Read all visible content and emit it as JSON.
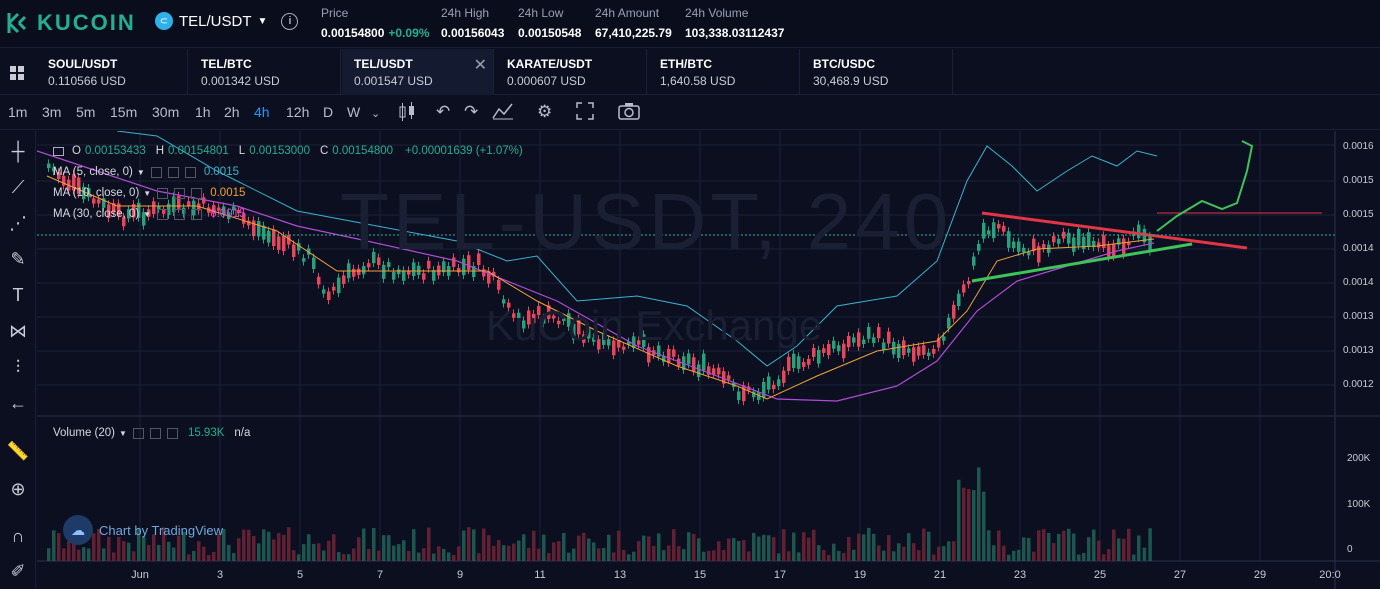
{
  "header": {
    "logo_text": "KUCOIN",
    "pair": "TEL/USDT",
    "price_label": "Price",
    "price_value": "0.00154800",
    "price_change": "+0.09%",
    "high_label": "24h High",
    "high_value": "0.00156043",
    "low_label": "24h Low",
    "low_value": "0.00150548",
    "amount_label": "24h Amount",
    "amount_value": "67,410,225.79",
    "volume_label": "24h Volume",
    "volume_value": "103,338.03112437"
  },
  "tabs": [
    {
      "name": "SOUL/USDT",
      "price": "0.110566 USD"
    },
    {
      "name": "TEL/BTC",
      "price": "0.001342 USD"
    },
    {
      "name": "TEL/USDT",
      "price": "0.001547 USD"
    },
    {
      "name": "KARATE/USDT",
      "price": "0.000607 USD"
    },
    {
      "name": "ETH/BTC",
      "price": "1,640.58 USD"
    },
    {
      "name": "BTC/USDC",
      "price": "30,468.9 USD"
    }
  ],
  "toolbar": {
    "timeframes": [
      "1m",
      "3m",
      "5m",
      "15m",
      "30m",
      "1h",
      "2h",
      "4h",
      "12h",
      "D",
      "W"
    ],
    "active": "4h"
  },
  "legend": {
    "ohlc": "O0.00153433 H0.00154801 L0.00153000 C0.00154800 +0.00001639 (+1.07%)",
    "o": "O",
    "o_val": "0.00153433",
    "h": "H",
    "h_val": "0.00154801",
    "l": "L",
    "l_val": "0.00153000",
    "c": "C",
    "c_val": "0.00154800",
    "chg": "+0.00001639 (+1.07%)",
    "ma5": "MA (5, close, 0)",
    "ma5_val": "0.0015",
    "ma10": "MA (10, close, 0)",
    "ma10_val": "0.0015",
    "ma30": "MA (30, close, 0)",
    "ma30_val": "0.0015",
    "volume": "Volume (20)",
    "volume_val": "15.93K",
    "volume_na": "n/a"
  },
  "watermark": {
    "main": "TEL-USDT, 240",
    "sub": "KuCoin Exchange"
  },
  "tradingview": "Chart by TradingView",
  "price_axis": [
    "0.0016",
    "0.0015",
    "0.0015",
    "0.0014",
    "0.0014",
    "0.0013",
    "0.0013",
    "0.0012"
  ],
  "volume_axis": [
    "200K",
    "100K",
    "0"
  ],
  "time_axis": [
    "Jun",
    "3",
    "5",
    "7",
    "9",
    "11",
    "13",
    "15",
    "17",
    "19",
    "21",
    "23",
    "25",
    "27",
    "29",
    "20:0"
  ],
  "colors": {
    "up": "#26a17b",
    "down": "#e8455b",
    "ma5": "#3ab3d0",
    "ma10": "#f0a13a",
    "ma30": "#b04bd6",
    "accent": "#2196f3"
  }
}
